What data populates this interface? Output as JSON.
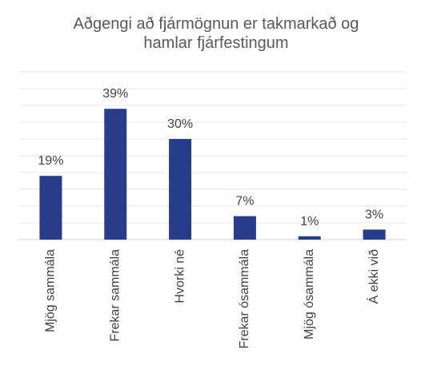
{
  "chart_data": {
    "type": "bar",
    "title": "Aðgengi að fjármögnun er takmarkað og hamlar fjárfestingum",
    "categories": [
      "Mjög sammála",
      "Frekar sammála",
      "Hvorki né",
      "Frekar ósammála",
      "Mjög ósammála",
      "Á ekki við"
    ],
    "values": [
      19,
      39,
      30,
      7,
      1,
      3
    ],
    "value_labels": [
      "19%",
      "39%",
      "30%",
      "7%",
      "1%",
      "3%"
    ],
    "color": "#283c8c",
    "ylim": [
      0,
      50
    ],
    "yticks": [
      0,
      5,
      10,
      15,
      20,
      25,
      30,
      35,
      40,
      45,
      50
    ],
    "grid": true
  }
}
